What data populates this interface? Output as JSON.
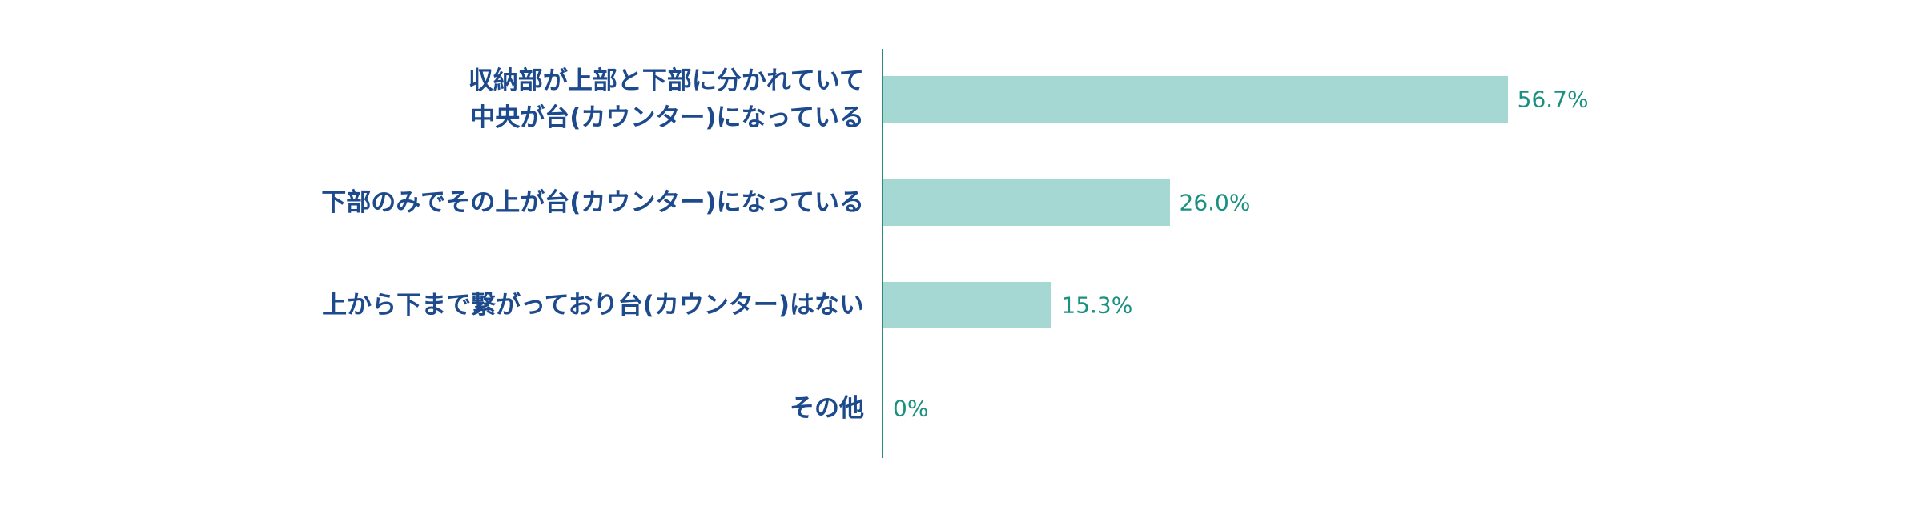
{
  "chart_data": {
    "type": "bar",
    "orientation": "horizontal",
    "categories": [
      "収納部が上部と下部に分かれていて\n中央が台(カウンター)になっている",
      "下部のみでその上が台(カウンター)になっている",
      "上から下まで繋がっており台(カウンター)はない",
      "その他"
    ],
    "values": [
      56.7,
      26.0,
      15.3,
      0
    ],
    "value_labels": [
      "56.7%",
      "26.0%",
      "15.3%",
      "0%"
    ],
    "color": "#a5d8d2"
  }
}
